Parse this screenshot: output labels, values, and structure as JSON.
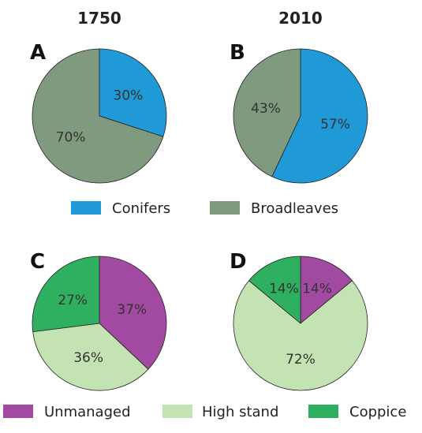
{
  "colors": {
    "conifers": "#1f9ad6",
    "broadleaves": "#7f9a7f",
    "unmanaged": "#a24aa1",
    "high_stand": "#c4e3b2",
    "coppice": "#2fb060"
  },
  "columns": {
    "left": "1750",
    "right": "2010"
  },
  "panels": [
    {
      "letter": "A"
    },
    {
      "letter": "B"
    },
    {
      "letter": "C"
    },
    {
      "letter": "D"
    }
  ],
  "legend_top": [
    "Conifers",
    "Broadleaves"
  ],
  "legend_bottom": [
    "Unmanaged",
    "High stand",
    "Coppice"
  ],
  "chart_data": [
    {
      "type": "pie",
      "title": "1750",
      "panel": "A",
      "labels": [
        "Conifers",
        "Broadleaves"
      ],
      "values": [
        30,
        70
      ],
      "value_labels": [
        "30%",
        "70%"
      ],
      "colors": [
        "#1f9ad6",
        "#7f9a7f"
      ]
    },
    {
      "type": "pie",
      "title": "2010",
      "panel": "B",
      "labels": [
        "Conifers",
        "Broadleaves"
      ],
      "values": [
        57,
        43
      ],
      "value_labels": [
        "57%",
        "43%"
      ],
      "colors": [
        "#1f9ad6",
        "#7f9a7f"
      ]
    },
    {
      "type": "pie",
      "title": "1750",
      "panel": "C",
      "labels": [
        "Unmanaged",
        "High stand",
        "Coppice"
      ],
      "values": [
        37,
        36,
        27
      ],
      "value_labels": [
        "37%",
        "36%",
        "27%"
      ],
      "colors": [
        "#a24aa1",
        "#c4e3b2",
        "#2fb060"
      ]
    },
    {
      "type": "pie",
      "title": "2010",
      "panel": "D",
      "labels": [
        "Unmanaged",
        "High stand",
        "Coppice"
      ],
      "values": [
        14,
        72,
        14
      ],
      "value_labels": [
        "14%",
        "72%",
        "14%"
      ],
      "colors": [
        "#a24aa1",
        "#c4e3b2",
        "#2fb060"
      ]
    }
  ]
}
